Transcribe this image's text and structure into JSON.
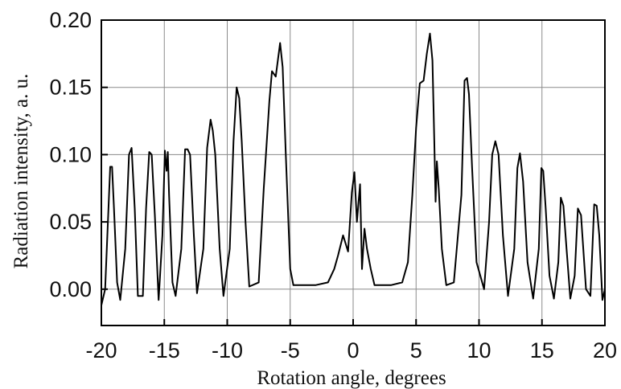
{
  "chart_data": {
    "type": "line",
    "title": "",
    "xlabel": "Rotation angle, degrees",
    "ylabel": "Radiation intensity, a. u.",
    "xlim": [
      -20,
      20
    ],
    "ylim": [
      -0.027,
      0.2
    ],
    "xticks": [
      -20,
      -15,
      -10,
      -5,
      0,
      5,
      10,
      15,
      20
    ],
    "yticks": [
      0.0,
      0.05,
      0.1,
      0.15,
      0.2
    ],
    "xtick_labels": [
      "-20",
      "-15",
      "-10",
      "-5",
      "0",
      "5",
      "10",
      "15",
      "20"
    ],
    "ytick_labels": [
      "0.00",
      "0.05",
      "0.10",
      "0.15",
      "0.20"
    ],
    "grid": true,
    "legend": "none",
    "line_color": "#000000",
    "series": [
      {
        "x": [
          -20,
          -19.7,
          -19.5,
          -19.3,
          -19.15,
          -19.0,
          -18.75,
          -18.5,
          -18.1,
          -17.8,
          -17.6,
          -17.35,
          -17.1,
          -16.7,
          -16.45,
          -16.2,
          -16.0,
          -15.75,
          -15.45,
          -15.15,
          -14.95,
          -14.82,
          -14.72,
          -14.62,
          -14.35,
          -14.1,
          -13.65,
          -13.35,
          -13.15,
          -12.95,
          -12.65,
          -12.4,
          -11.9,
          -11.6,
          -11.32,
          -11.15,
          -10.95,
          -10.6,
          -10.3,
          -9.8,
          -9.5,
          -9.25,
          -9.05,
          -8.85,
          -8.55,
          -8.25,
          -7.5,
          -7.1,
          -6.65,
          -6.45,
          -6.15,
          -5.8,
          -5.6,
          -5.35,
          -5.0,
          -4.75,
          -4.0,
          -3.0,
          -2.0,
          -1.5,
          -1.2,
          -0.8,
          -0.4,
          -0.1,
          0.1,
          0.3,
          0.55,
          0.7,
          0.9,
          1.1,
          1.4,
          1.7,
          2.1,
          3.0,
          3.9,
          4.35,
          4.7,
          5.0,
          5.3,
          5.6,
          5.85,
          6.1,
          6.3,
          6.45,
          6.55,
          6.65,
          6.8,
          7.05,
          7.4,
          8.0,
          8.6,
          8.85,
          9.05,
          9.2,
          9.45,
          9.8,
          10.4,
          10.8,
          11.05,
          11.3,
          11.55,
          11.9,
          12.3,
          12.8,
          13.05,
          13.25,
          13.5,
          13.85,
          14.3,
          14.75,
          14.95,
          15.1,
          15.3,
          15.6,
          15.95,
          16.3,
          16.5,
          16.7,
          16.95,
          17.25,
          17.6,
          17.85,
          18.1,
          18.5,
          18.85,
          19.15,
          19.35,
          19.55,
          19.8,
          20.0
        ],
        "y": [
          -0.012,
          0.0,
          0.045,
          0.091,
          0.091,
          0.06,
          0.005,
          -0.008,
          0.03,
          0.1,
          0.105,
          0.06,
          -0.005,
          -0.005,
          0.06,
          0.102,
          0.1,
          0.055,
          -0.008,
          0.04,
          0.103,
          0.088,
          0.102,
          0.07,
          0.005,
          -0.005,
          0.03,
          0.104,
          0.104,
          0.1,
          0.04,
          -0.003,
          0.03,
          0.105,
          0.126,
          0.118,
          0.1,
          0.03,
          -0.005,
          0.03,
          0.11,
          0.15,
          0.142,
          0.11,
          0.05,
          0.002,
          0.005,
          0.075,
          0.14,
          0.162,
          0.158,
          0.183,
          0.165,
          0.1,
          0.015,
          0.003,
          0.003,
          0.003,
          0.005,
          0.015,
          0.025,
          0.04,
          0.028,
          0.072,
          0.087,
          0.05,
          0.078,
          0.015,
          0.045,
          0.03,
          0.015,
          0.003,
          0.003,
          0.003,
          0.005,
          0.02,
          0.07,
          0.12,
          0.153,
          0.155,
          0.175,
          0.19,
          0.17,
          0.11,
          0.065,
          0.095,
          0.075,
          0.03,
          0.003,
          0.005,
          0.07,
          0.155,
          0.157,
          0.145,
          0.09,
          0.02,
          0.0,
          0.05,
          0.1,
          0.11,
          0.1,
          0.04,
          -0.005,
          0.03,
          0.09,
          0.101,
          0.08,
          0.02,
          -0.007,
          0.03,
          0.09,
          0.088,
          0.06,
          0.01,
          -0.007,
          0.02,
          0.068,
          0.062,
          0.03,
          -0.007,
          0.01,
          0.06,
          0.055,
          0.0,
          -0.005,
          0.063,
          0.062,
          0.04,
          -0.008,
          0.0
        ]
      }
    ]
  }
}
